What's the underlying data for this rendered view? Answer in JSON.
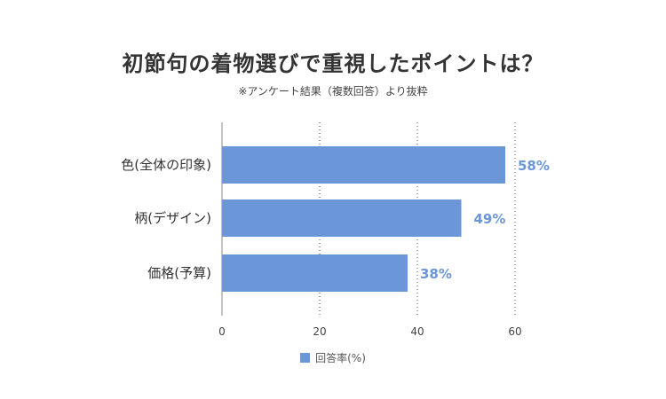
{
  "chart_data": {
    "type": "bar",
    "orientation": "horizontal",
    "title": "初節句の着物選びで重視したポイントは？",
    "subtitle": "※アンケート結果（複数回答）より抜粋",
    "categories": [
      "色(全体の印象)",
      "柄(デザイン)",
      "価格(予算)"
    ],
    "series": [
      {
        "name": "回答率(%)",
        "values": [
          58,
          49,
          38
        ],
        "color": "#6b96d8"
      }
    ],
    "data_labels": [
      "58%",
      "49%",
      "38%"
    ],
    "xlim": [
      0,
      60
    ],
    "x_ticks": [
      "0",
      "20",
      "40",
      "60"
    ],
    "grid": "vertical dotted",
    "legend_position": "bottom"
  }
}
